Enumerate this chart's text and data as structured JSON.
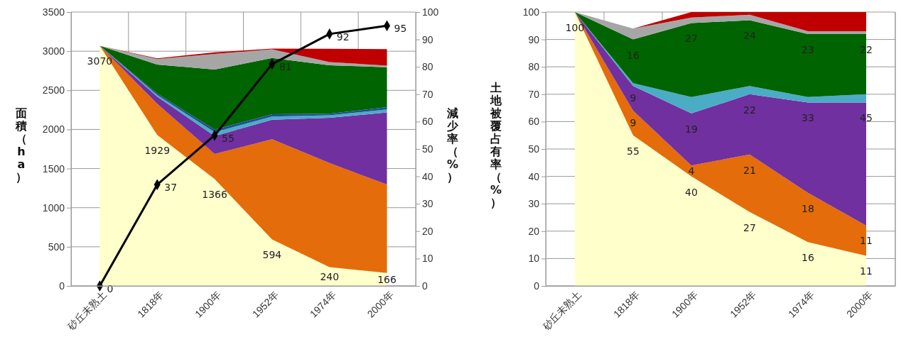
{
  "chart_data": [
    {
      "type": "area",
      "stacked": true,
      "ylabel": "面積（ha）",
      "y2label": "減少率（%）",
      "categories": [
        "砂丘未熟土",
        "1818年",
        "1900年",
        "1952年",
        "1974年",
        "2000年"
      ],
      "ylim": [
        0,
        3500
      ],
      "yticks": [
        0,
        500,
        1000,
        1500,
        2000,
        2500,
        3000,
        3500
      ],
      "y2lim": [
        0,
        100
      ],
      "y2ticks": [
        0,
        10,
        20,
        30,
        40,
        50,
        60,
        70,
        80,
        90,
        100
      ],
      "grid": true,
      "legend": false,
      "series": [
        {
          "color": "#ffffcc",
          "values": [
            3070,
            1929,
            1366,
            594,
            240,
            166
          ],
          "value_labels": [
            "3070",
            "1929",
            "1366",
            "594",
            "240",
            "166"
          ]
        },
        {
          "color": "#e46c0a",
          "values": [
            0,
            400,
            320,
            1280,
            1330,
            1130
          ]
        },
        {
          "color": "#7030a0",
          "values": [
            0,
            90,
            230,
            250,
            580,
            920
          ]
        },
        {
          "color": "#4bacc6",
          "values": [
            0,
            20,
            50,
            40,
            30,
            40
          ]
        },
        {
          "color": "#1f4e9a",
          "values": [
            0,
            20,
            30,
            30,
            20,
            30
          ]
        },
        {
          "color": "#006400",
          "values": [
            0,
            370,
            770,
            720,
            620,
            510
          ]
        },
        {
          "color": "#a6a6a6",
          "values": [
            0,
            70,
            200,
            110,
            40,
            20
          ]
        },
        {
          "color": "#c00000",
          "values": [
            0,
            10,
            20,
            10,
            170,
            210
          ]
        },
        {
          "type": "line",
          "axis": "y2",
          "color": "#000000",
          "marker": "diamond",
          "values": [
            0,
            37,
            55,
            81,
            92,
            95
          ],
          "value_labels": [
            "0",
            "37",
            "55",
            "81",
            "92",
            "95"
          ]
        }
      ]
    },
    {
      "type": "area",
      "stacked": true,
      "ylabel": "土地被覆占有率（%）",
      "categories": [
        "砂丘未熟土",
        "1818年",
        "1900年",
        "1952年",
        "1974年",
        "2000年"
      ],
      "ylim": [
        0,
        100
      ],
      "yticks": [
        0,
        10,
        20,
        30,
        40,
        50,
        60,
        70,
        80,
        90,
        100
      ],
      "grid": true,
      "legend": false,
      "series": [
        {
          "color": "#ffffcc",
          "values": [
            100,
            55,
            40,
            27,
            16,
            11
          ],
          "value_labels": [
            "100",
            "55",
            "40",
            "27",
            "16",
            "11"
          ]
        },
        {
          "color": "#e46c0a",
          "values": [
            0,
            9,
            4,
            21,
            18,
            11
          ],
          "value_labels": [
            null,
            "9",
            "4",
            "21",
            "18",
            "11"
          ]
        },
        {
          "color": "#7030a0",
          "values": [
            0,
            9,
            19,
            22,
            33,
            45
          ],
          "value_labels": [
            null,
            "9",
            "19",
            "22",
            "33",
            "45"
          ]
        },
        {
          "color": "#4bacc6",
          "values": [
            0,
            1,
            6,
            3,
            2,
            3
          ]
        },
        {
          "color": "#006400",
          "values": [
            0,
            16,
            27,
            24,
            23,
            22
          ],
          "value_labels": [
            null,
            "16",
            "27",
            "24",
            "23",
            "22"
          ]
        },
        {
          "color": "#a6a6a6",
          "values": [
            0,
            4,
            2,
            2,
            1,
            1
          ]
        },
        {
          "color": "#c00000",
          "values": [
            0,
            0,
            2,
            1,
            7,
            7
          ]
        }
      ]
    }
  ]
}
